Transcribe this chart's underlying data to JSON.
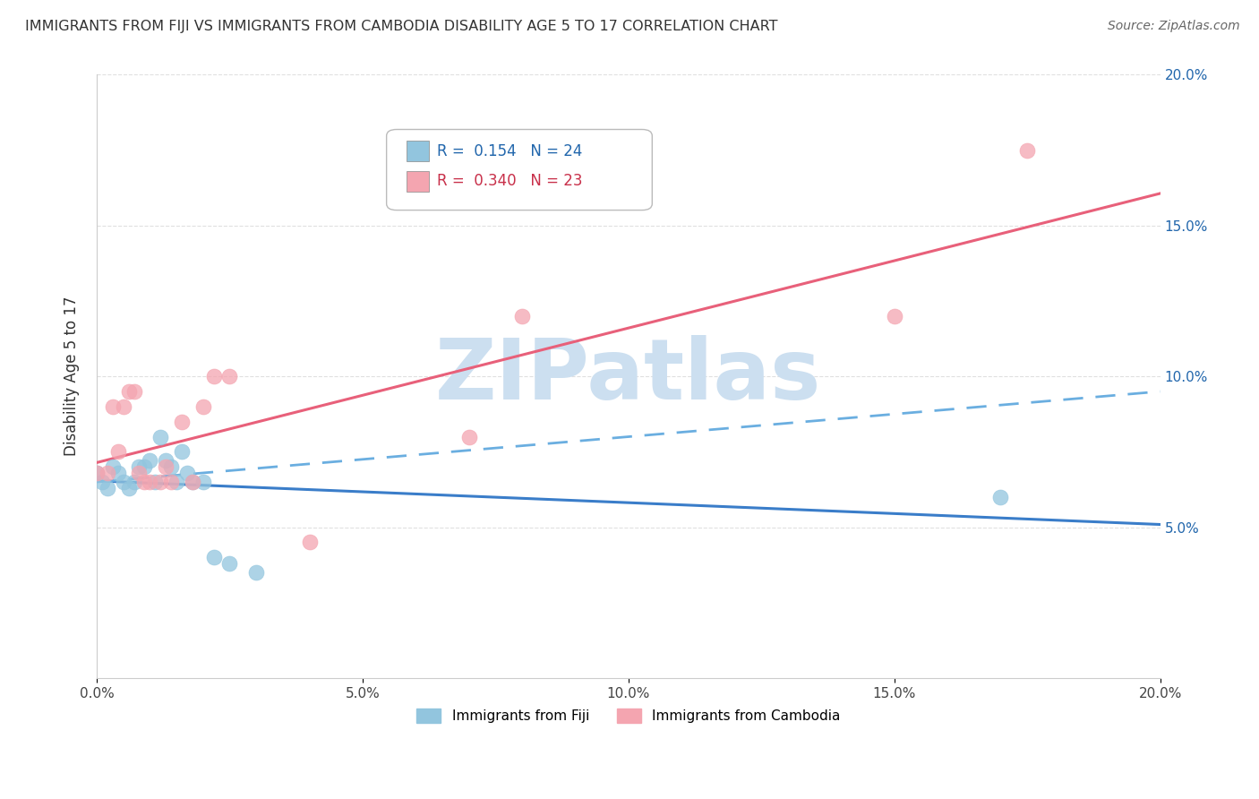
{
  "title": "IMMIGRANTS FROM FIJI VS IMMIGRANTS FROM CAMBODIA DISABILITY AGE 5 TO 17 CORRELATION CHART",
  "source": "Source: ZipAtlas.com",
  "ylabel": "Disability Age 5 to 17",
  "xlim": [
    0.0,
    0.2
  ],
  "ylim": [
    0.0,
    0.2
  ],
  "xtick_labels": [
    "0.0%",
    "5.0%",
    "10.0%",
    "15.0%",
    "20.0%"
  ],
  "xtick_vals": [
    0.0,
    0.05,
    0.1,
    0.15,
    0.2
  ],
  "ytick_labels_right": [
    "5.0%",
    "10.0%",
    "15.0%",
    "20.0%"
  ],
  "ytick_vals": [
    0.05,
    0.1,
    0.15,
    0.2
  ],
  "fiji_color": "#92c5de",
  "cambodia_color": "#f4a5b0",
  "fiji_R": 0.154,
  "fiji_N": 24,
  "cambodia_R": 0.34,
  "cambodia_N": 23,
  "fiji_x": [
    0.0,
    0.001,
    0.002,
    0.003,
    0.004,
    0.005,
    0.006,
    0.007,
    0.008,
    0.009,
    0.01,
    0.011,
    0.012,
    0.013,
    0.014,
    0.015,
    0.016,
    0.017,
    0.018,
    0.02,
    0.022,
    0.025,
    0.03,
    0.17
  ],
  "fiji_y": [
    0.068,
    0.065,
    0.063,
    0.07,
    0.068,
    0.065,
    0.063,
    0.065,
    0.07,
    0.07,
    0.072,
    0.065,
    0.08,
    0.072,
    0.07,
    0.065,
    0.075,
    0.068,
    0.065,
    0.065,
    0.04,
    0.038,
    0.035,
    0.06
  ],
  "cambodia_x": [
    0.0,
    0.002,
    0.003,
    0.004,
    0.005,
    0.006,
    0.007,
    0.008,
    0.009,
    0.01,
    0.012,
    0.013,
    0.014,
    0.016,
    0.018,
    0.02,
    0.022,
    0.025,
    0.04,
    0.07,
    0.08,
    0.15,
    0.175
  ],
  "cambodia_y": [
    0.068,
    0.068,
    0.09,
    0.075,
    0.09,
    0.095,
    0.095,
    0.068,
    0.065,
    0.065,
    0.065,
    0.07,
    0.065,
    0.085,
    0.065,
    0.09,
    0.1,
    0.1,
    0.045,
    0.08,
    0.12,
    0.12,
    0.175
  ],
  "watermark": "ZIPatlas",
  "watermark_color": "#ccdff0",
  "trend_fiji_solid_color": "#3a7dc9",
  "trend_fiji_dashed_color": "#6aaee0",
  "trend_cambodia_color": "#e8607a",
  "grid_color": "#e0e0e0",
  "background_color": "#ffffff",
  "legend_fiji_color": "#92c5de",
  "legend_cambodia_color": "#f4a5b0",
  "legend_text_fiji_color": "#2166ac",
  "legend_text_cambodia_color": "#c8304a"
}
